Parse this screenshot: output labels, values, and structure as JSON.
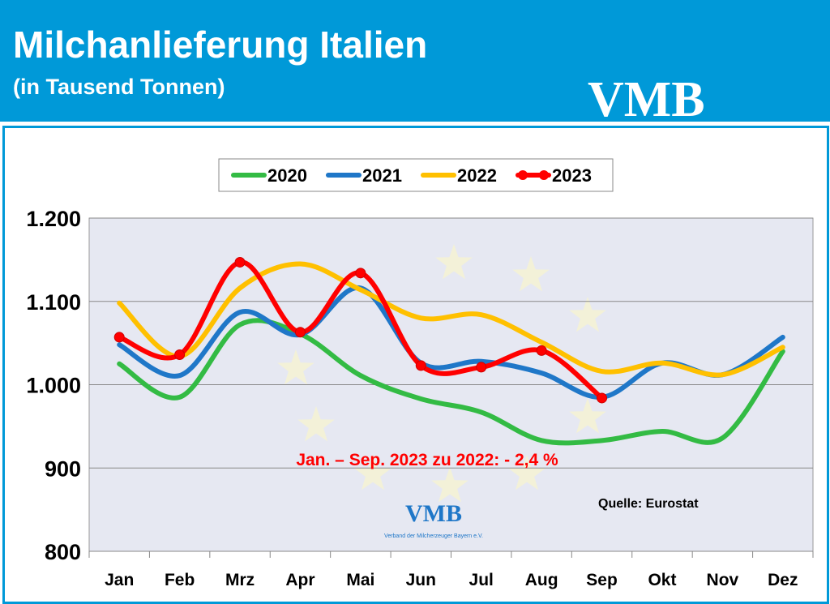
{
  "header": {
    "title": "Milchanlieferung Italien",
    "subtitle": "(in Tausend Tonnen)",
    "logo": "VMB"
  },
  "chart_data": {
    "type": "line",
    "categories": [
      "Jan",
      "Feb",
      "Mrz",
      "Apr",
      "Mai",
      "Jun",
      "Jul",
      "Aug",
      "Sep",
      "Okt",
      "Nov",
      "Dez"
    ],
    "ylim": [
      800,
      1200
    ],
    "yticks": [
      "800",
      "900",
      "1.000",
      "1.100",
      "1.200"
    ],
    "ytick_values": [
      800,
      900,
      1000,
      1100,
      1200
    ],
    "grid": true,
    "legend": "top",
    "series": [
      {
        "name": "2020",
        "color": "#33bb44",
        "values": [
          1025,
          985,
          1072,
          1061,
          1011,
          983,
          967,
          933,
          933,
          944,
          936,
          1040
        ]
      },
      {
        "name": "2021",
        "color": "#1f77c8",
        "values": [
          1048,
          1011,
          1087,
          1060,
          1116,
          1026,
          1028,
          1014,
          985,
          1026,
          1012,
          1057
        ]
      },
      {
        "name": "2022",
        "color": "#ffc000",
        "values": [
          1098,
          1034,
          1116,
          1145,
          1114,
          1080,
          1084,
          1051,
          1016,
          1026,
          1012,
          1045
        ]
      },
      {
        "name": "2023",
        "color": "#ff0000",
        "markers": true,
        "values": [
          1057,
          1036,
          1147,
          1063,
          1134,
          1023,
          1021,
          1041,
          984,
          null,
          null,
          null
        ]
      }
    ],
    "annotation": "Jan. – Sep. 2023 zu 2022: - 2,4 %",
    "source": "Quelle: Eurostat",
    "watermark": "VMB",
    "watermark_sub": "Verband der Milcherzeuger Bayern e.V."
  }
}
